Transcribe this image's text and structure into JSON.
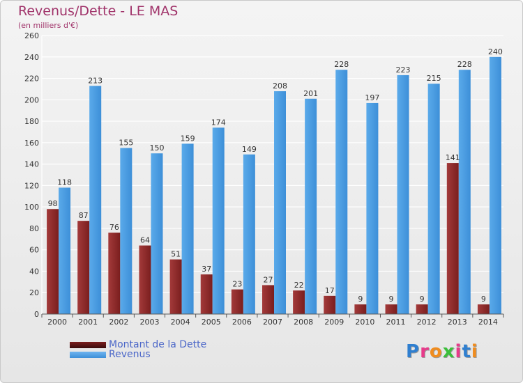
{
  "title": "Revenus/Dette - LE MAS",
  "subtitle": "(en milliers d'€)",
  "logo": {
    "text": "Proxiti",
    "letter_colors": [
      "#2f7fd0",
      "#e83a8a",
      "#f08c1e",
      "#3bbf3b",
      "#e83a8a",
      "#2f7fd0",
      "#f08c1e"
    ]
  },
  "colors": {
    "dette": "#7a1e1e",
    "revenus": "#3d8fd8",
    "grid": "#ffffff",
    "axis_text": "#333333",
    "label_text": "#333333"
  },
  "chart_data": {
    "type": "bar",
    "title": "Revenus/Dette - LE MAS",
    "subtitle": "(en milliers d'€)",
    "categories": [
      "2000",
      "2001",
      "2002",
      "2003",
      "2004",
      "2005",
      "2006",
      "2007",
      "2008",
      "2009",
      "2010",
      "2011",
      "2012",
      "2013",
      "2014"
    ],
    "series": [
      {
        "name": "Montant de la Dette",
        "values": [
          98,
          87,
          76,
          64,
          51,
          37,
          23,
          27,
          22,
          17,
          9,
          9,
          9,
          141,
          9
        ]
      },
      {
        "name": "Revenus",
        "values": [
          118,
          213,
          155,
          150,
          159,
          174,
          149,
          208,
          201,
          228,
          197,
          223,
          215,
          228,
          240
        ]
      }
    ],
    "ylim": [
      0,
      260
    ],
    "yticks": [
      0,
      20,
      40,
      60,
      80,
      100,
      120,
      140,
      160,
      180,
      200,
      220,
      240,
      260
    ],
    "grid": true,
    "legend_position": "bottom-left"
  }
}
